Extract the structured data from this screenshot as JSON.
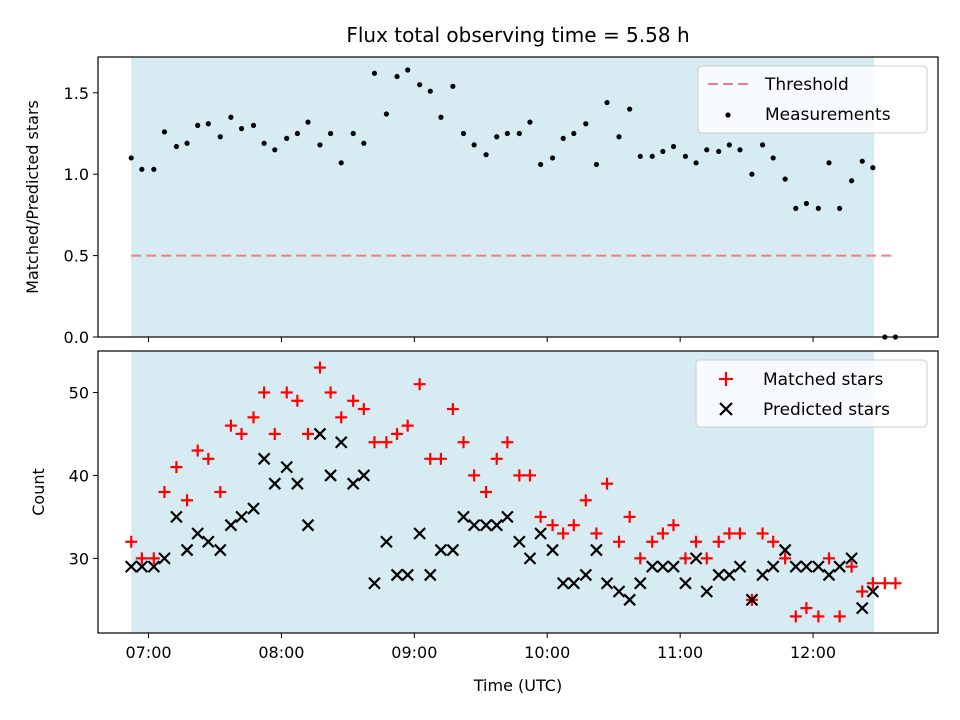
{
  "chart_data": [
    {
      "type": "scatter",
      "title": "Flux total observing time = 5.58 h",
      "xlabel": "",
      "ylabel": "Matched/Predicted stars",
      "xlim": [
        6.62,
        12.94
      ],
      "ylim": [
        0,
        1.72
      ],
      "y_ticks": [
        0.0,
        0.5,
        1.0,
        1.5
      ],
      "y_tick_labels": [
        "0.0",
        "0.5",
        "1.0",
        "1.5"
      ],
      "shaded_span": [
        6.87,
        12.46
      ],
      "threshold": {
        "name": "Threshold",
        "y": 0.5,
        "x_range": [
          6.87,
          12.6
        ],
        "color": "#f08080"
      },
      "legend": [
        "Threshold",
        "Measurements"
      ],
      "legend_position": "top-right",
      "series": [
        {
          "name": "Measurements",
          "color": "#000000",
          "points": [
            [
              6.87,
              1.1
            ],
            [
              6.95,
              1.03
            ],
            [
              7.04,
              1.03
            ],
            [
              7.12,
              1.26
            ],
            [
              7.21,
              1.17
            ],
            [
              7.29,
              1.19
            ],
            [
              7.37,
              1.3
            ],
            [
              7.45,
              1.31
            ],
            [
              7.54,
              1.23
            ],
            [
              7.62,
              1.35
            ],
            [
              7.7,
              1.28
            ],
            [
              7.79,
              1.3
            ],
            [
              7.87,
              1.19
            ],
            [
              7.95,
              1.15
            ],
            [
              8.04,
              1.22
            ],
            [
              8.12,
              1.25
            ],
            [
              8.2,
              1.32
            ],
            [
              8.29,
              1.18
            ],
            [
              8.37,
              1.25
            ],
            [
              8.45,
              1.07
            ],
            [
              8.54,
              1.25
            ],
            [
              8.62,
              1.19
            ],
            [
              8.7,
              1.62
            ],
            [
              8.79,
              1.37
            ],
            [
              8.87,
              1.6
            ],
            [
              8.95,
              1.64
            ],
            [
              9.04,
              1.55
            ],
            [
              9.12,
              1.51
            ],
            [
              9.2,
              1.35
            ],
            [
              9.29,
              1.54
            ],
            [
              9.37,
              1.25
            ],
            [
              9.45,
              1.18
            ],
            [
              9.54,
              1.12
            ],
            [
              9.62,
              1.23
            ],
            [
              9.7,
              1.25
            ],
            [
              9.79,
              1.25
            ],
            [
              9.87,
              1.32
            ],
            [
              9.95,
              1.06
            ],
            [
              10.04,
              1.1
            ],
            [
              10.12,
              1.22
            ],
            [
              10.2,
              1.25
            ],
            [
              10.29,
              1.31
            ],
            [
              10.37,
              1.06
            ],
            [
              10.45,
              1.44
            ],
            [
              10.54,
              1.23
            ],
            [
              10.62,
              1.4
            ],
            [
              10.7,
              1.11
            ],
            [
              10.79,
              1.11
            ],
            [
              10.87,
              1.14
            ],
            [
              10.95,
              1.17
            ],
            [
              11.04,
              1.11
            ],
            [
              11.12,
              1.07
            ],
            [
              11.2,
              1.15
            ],
            [
              11.29,
              1.14
            ],
            [
              11.37,
              1.18
            ],
            [
              11.45,
              1.15
            ],
            [
              11.54,
              1.0
            ],
            [
              11.62,
              1.18
            ],
            [
              11.7,
              1.1
            ],
            [
              11.79,
              0.97
            ],
            [
              11.87,
              0.79
            ],
            [
              11.95,
              0.82
            ],
            [
              12.04,
              0.79
            ],
            [
              12.12,
              1.07
            ],
            [
              12.2,
              0.79
            ],
            [
              12.29,
              0.96
            ],
            [
              12.37,
              1.08
            ],
            [
              12.45,
              1.04
            ],
            [
              12.54,
              0.0
            ],
            [
              12.62,
              0.0
            ]
          ]
        }
      ]
    },
    {
      "type": "scatter",
      "title": "",
      "xlabel": "Time (UTC)",
      "ylabel": "Count",
      "xlim": [
        6.62,
        12.94
      ],
      "ylim": [
        21,
        55
      ],
      "y_ticks": [
        30,
        40,
        50
      ],
      "y_tick_labels": [
        "30",
        "40",
        "50"
      ],
      "x_ticks": [
        7,
        8,
        9,
        10,
        11,
        12
      ],
      "x_tick_labels": [
        "07:00",
        "08:00",
        "09:00",
        "10:00",
        "11:00",
        "12:00"
      ],
      "shaded_span": [
        6.87,
        12.46
      ],
      "legend": [
        "Matched stars",
        "Predicted stars"
      ],
      "legend_position": "top-right",
      "series": [
        {
          "name": "Matched stars",
          "marker": "plus",
          "color": "#ff0000",
          "points": [
            [
              6.87,
              32
            ],
            [
              6.95,
              30
            ],
            [
              7.04,
              30
            ],
            [
              7.12,
              38
            ],
            [
              7.21,
              41
            ],
            [
              7.29,
              37
            ],
            [
              7.37,
              43
            ],
            [
              7.45,
              42
            ],
            [
              7.54,
              38
            ],
            [
              7.62,
              46
            ],
            [
              7.7,
              45
            ],
            [
              7.79,
              47
            ],
            [
              7.87,
              50
            ],
            [
              7.95,
              45
            ],
            [
              8.04,
              50
            ],
            [
              8.12,
              49
            ],
            [
              8.2,
              45
            ],
            [
              8.29,
              53
            ],
            [
              8.37,
              50
            ],
            [
              8.45,
              47
            ],
            [
              8.54,
              49
            ],
            [
              8.62,
              48
            ],
            [
              8.7,
              44
            ],
            [
              8.79,
              44
            ],
            [
              8.87,
              45
            ],
            [
              8.95,
              46
            ],
            [
              9.04,
              51
            ],
            [
              9.12,
              42
            ],
            [
              9.2,
              42
            ],
            [
              9.29,
              48
            ],
            [
              9.37,
              44
            ],
            [
              9.45,
              40
            ],
            [
              9.54,
              38
            ],
            [
              9.62,
              42
            ],
            [
              9.7,
              44
            ],
            [
              9.79,
              40
            ],
            [
              9.87,
              40
            ],
            [
              9.95,
              35
            ],
            [
              10.04,
              34
            ],
            [
              10.12,
              33
            ],
            [
              10.2,
              34
            ],
            [
              10.29,
              37
            ],
            [
              10.37,
              33
            ],
            [
              10.45,
              39
            ],
            [
              10.54,
              32
            ],
            [
              10.62,
              35
            ],
            [
              10.7,
              30
            ],
            [
              10.79,
              32
            ],
            [
              10.87,
              33
            ],
            [
              10.95,
              34
            ],
            [
              11.04,
              30
            ],
            [
              11.12,
              32
            ],
            [
              11.2,
              30
            ],
            [
              11.29,
              32
            ],
            [
              11.37,
              33
            ],
            [
              11.45,
              33
            ],
            [
              11.54,
              25
            ],
            [
              11.62,
              33
            ],
            [
              11.7,
              32
            ],
            [
              11.79,
              30
            ],
            [
              11.87,
              23
            ],
            [
              11.95,
              24
            ],
            [
              12.04,
              23
            ],
            [
              12.12,
              30
            ],
            [
              12.2,
              23
            ],
            [
              12.29,
              29
            ],
            [
              12.37,
              26
            ],
            [
              12.45,
              27
            ],
            [
              12.54,
              27
            ],
            [
              12.62,
              27
            ]
          ]
        },
        {
          "name": "Predicted stars",
          "marker": "x",
          "color": "#000000",
          "points": [
            [
              6.87,
              29
            ],
            [
              6.95,
              29
            ],
            [
              7.04,
              29
            ],
            [
              7.12,
              30
            ],
            [
              7.21,
              35
            ],
            [
              7.29,
              31
            ],
            [
              7.37,
              33
            ],
            [
              7.45,
              32
            ],
            [
              7.54,
              31
            ],
            [
              7.62,
              34
            ],
            [
              7.7,
              35
            ],
            [
              7.79,
              36
            ],
            [
              7.87,
              42
            ],
            [
              7.95,
              39
            ],
            [
              8.04,
              41
            ],
            [
              8.12,
              39
            ],
            [
              8.2,
              34
            ],
            [
              8.29,
              45
            ],
            [
              8.37,
              40
            ],
            [
              8.45,
              44
            ],
            [
              8.54,
              39
            ],
            [
              8.62,
              40
            ],
            [
              8.7,
              27
            ],
            [
              8.79,
              32
            ],
            [
              8.87,
              28
            ],
            [
              8.95,
              28
            ],
            [
              9.04,
              33
            ],
            [
              9.12,
              28
            ],
            [
              9.2,
              31
            ],
            [
              9.29,
              31
            ],
            [
              9.37,
              35
            ],
            [
              9.45,
              34
            ],
            [
              9.54,
              34
            ],
            [
              9.62,
              34
            ],
            [
              9.7,
              35
            ],
            [
              9.79,
              32
            ],
            [
              9.87,
              30
            ],
            [
              9.95,
              33
            ],
            [
              10.04,
              31
            ],
            [
              10.12,
              27
            ],
            [
              10.2,
              27
            ],
            [
              10.29,
              28
            ],
            [
              10.37,
              31
            ],
            [
              10.45,
              27
            ],
            [
              10.54,
              26
            ],
            [
              10.62,
              25
            ],
            [
              10.7,
              27
            ],
            [
              10.79,
              29
            ],
            [
              10.87,
              29
            ],
            [
              10.95,
              29
            ],
            [
              11.04,
              27
            ],
            [
              11.12,
              30
            ],
            [
              11.2,
              26
            ],
            [
              11.29,
              28
            ],
            [
              11.37,
              28
            ],
            [
              11.45,
              29
            ],
            [
              11.54,
              25
            ],
            [
              11.62,
              28
            ],
            [
              11.7,
              29
            ],
            [
              11.79,
              31
            ],
            [
              11.87,
              29
            ],
            [
              11.95,
              29
            ],
            [
              12.04,
              29
            ],
            [
              12.12,
              28
            ],
            [
              12.2,
              29
            ],
            [
              12.29,
              30
            ],
            [
              12.37,
              24
            ],
            [
              12.45,
              26
            ]
          ]
        }
      ]
    }
  ]
}
